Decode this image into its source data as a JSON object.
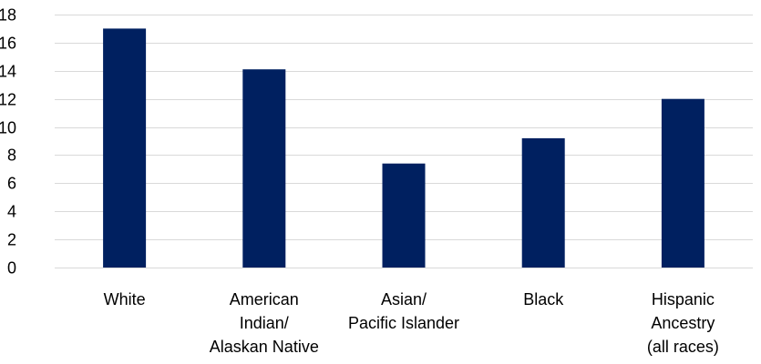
{
  "chart_data": {
    "type": "bar",
    "title": "",
    "xlabel": "",
    "ylabel": "",
    "categories": [
      [
        "White"
      ],
      [
        "American",
        "Indian/",
        "Alaskan Native"
      ],
      [
        "Asian/",
        "Pacific Islander"
      ],
      [
        "Black"
      ],
      [
        "Hispanic",
        "Ancestry",
        "(all races)"
      ]
    ],
    "values": [
      17.0,
      14.1,
      7.4,
      9.2,
      12.0
    ],
    "ylim": [
      0,
      18
    ],
    "yticks": [
      "0",
      "2",
      "4",
      "6",
      "8",
      "10",
      "12",
      "14",
      "16",
      "18"
    ],
    "grid": true,
    "bar_color": "#002060",
    "grid_color": "#d9d9d9"
  }
}
